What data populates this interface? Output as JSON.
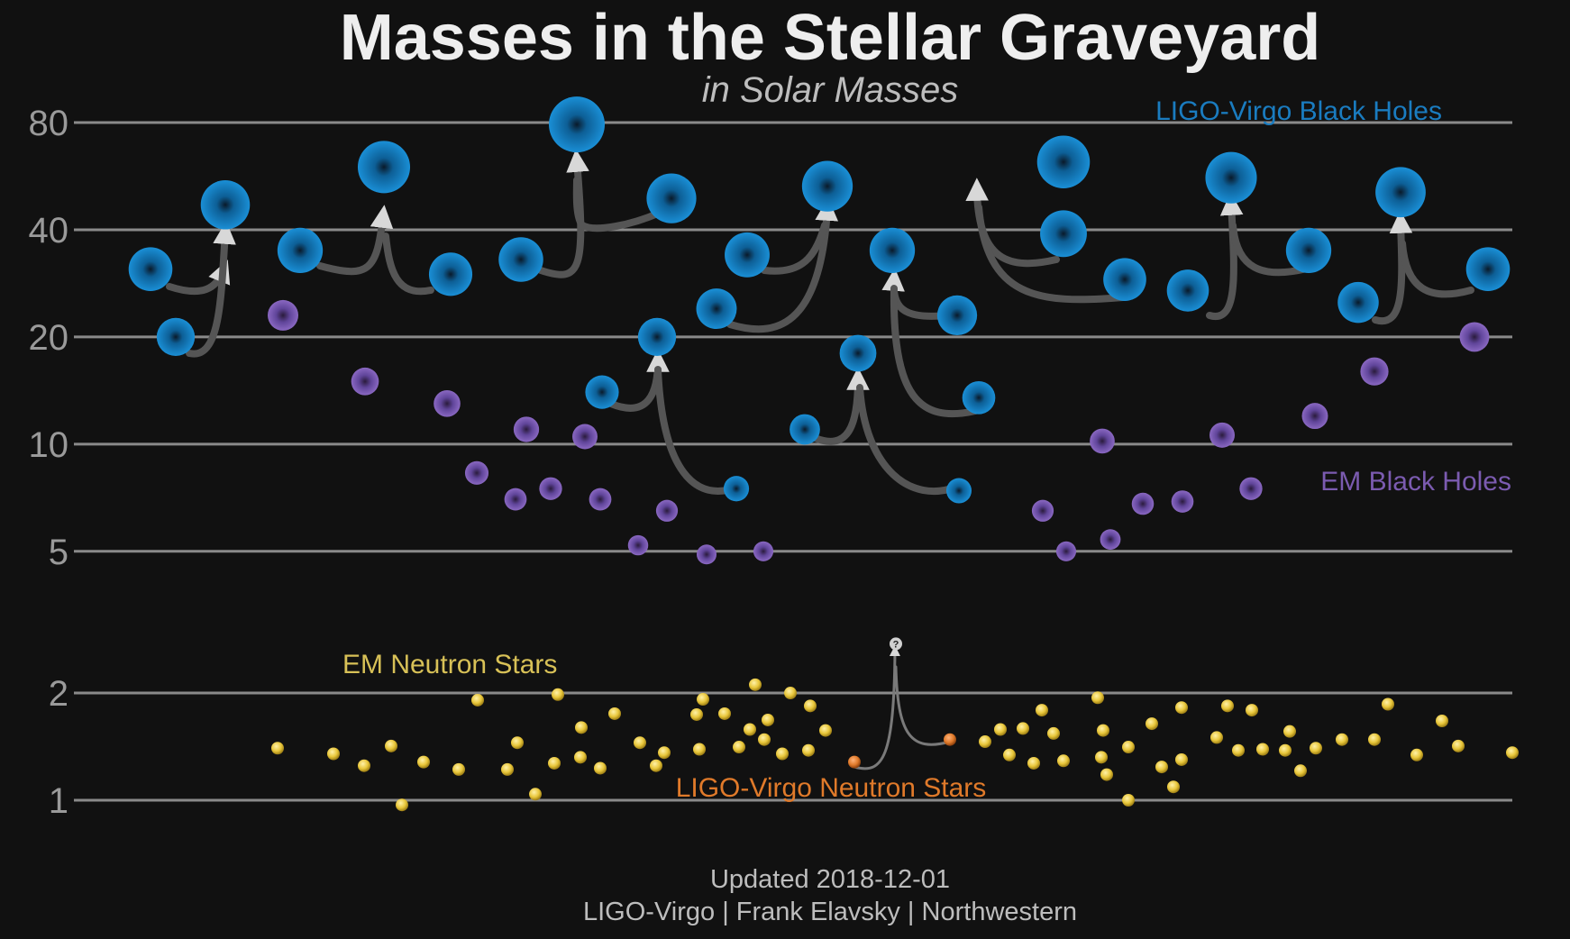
{
  "chart_data": {
    "type": "scatter",
    "title": "Masses in the Stellar Graveyard",
    "subtitle": "in Solar Masses",
    "y_scale": "log",
    "ylim": [
      0.85,
      95
    ],
    "y_ticks": [
      1,
      2,
      5,
      10,
      20,
      40,
      80
    ],
    "grid": true,
    "footer_line1": "Updated 2018-12-01",
    "footer_line2": "LIGO-Virgo | Frank Elavsky | Northwestern",
    "series": [
      {
        "name": "LIGO-Virgo Black Holes",
        "color": "#1a86c8",
        "points": [
          {
            "x": 1,
            "y": 31
          },
          {
            "x": 2,
            "y": 20
          },
          {
            "x": 3,
            "y": 47
          },
          {
            "x": 4,
            "y": 35
          },
          {
            "x": 5,
            "y": 60
          },
          {
            "x": 6,
            "y": 30
          },
          {
            "x": 7,
            "y": 33
          },
          {
            "x": 8,
            "y": 79
          },
          {
            "x": 9,
            "y": 49
          },
          {
            "x": 10,
            "y": 14
          },
          {
            "x": 11,
            "y": 20
          },
          {
            "x": 12,
            "y": 7.5
          },
          {
            "x": 13,
            "y": 24
          },
          {
            "x": 14,
            "y": 34
          },
          {
            "x": 15,
            "y": 53
          },
          {
            "x": 16,
            "y": 11
          },
          {
            "x": 17,
            "y": 18
          },
          {
            "x": 18,
            "y": 35
          },
          {
            "x": 19,
            "y": 7.4
          },
          {
            "x": 20,
            "y": 23
          },
          {
            "x": 21,
            "y": 13.5
          },
          {
            "x": 22,
            "y": 62
          },
          {
            "x": 23,
            "y": 39
          },
          {
            "x": 24,
            "y": 29
          },
          {
            "x": 25,
            "y": 27
          },
          {
            "x": 26,
            "y": 56
          },
          {
            "x": 27,
            "y": 35
          },
          {
            "x": 28,
            "y": 25
          },
          {
            "x": 29,
            "y": 51
          },
          {
            "x": 30,
            "y": 31
          }
        ]
      },
      {
        "name": "EM Black Holes",
        "color": "#7b5bb0",
        "points": [
          {
            "x": 1,
            "y": 23
          },
          {
            "x": 2,
            "y": 15
          },
          {
            "x": 3,
            "y": 13
          },
          {
            "x": 4,
            "y": 8.3
          },
          {
            "x": 5,
            "y": 7
          },
          {
            "x": 6,
            "y": 11
          },
          {
            "x": 7,
            "y": 7.5
          },
          {
            "x": 8,
            "y": 10.5
          },
          {
            "x": 9,
            "y": 7
          },
          {
            "x": 10,
            "y": 5.2
          },
          {
            "x": 11,
            "y": 6.5
          },
          {
            "x": 12,
            "y": 4.9
          },
          {
            "x": 13,
            "y": 5
          },
          {
            "x": 14,
            "y": 6.5
          },
          {
            "x": 15,
            "y": 10.2
          },
          {
            "x": 16,
            "y": 5
          },
          {
            "x": 17,
            "y": 5.4
          },
          {
            "x": 18,
            "y": 6.8
          },
          {
            "x": 19,
            "y": 6.9
          },
          {
            "x": 20,
            "y": 10.6
          },
          {
            "x": 21,
            "y": 7.5
          },
          {
            "x": 22,
            "y": 12
          },
          {
            "x": 23,
            "y": 16
          },
          {
            "x": 24,
            "y": 20
          }
        ]
      },
      {
        "name": "EM Neutron Stars",
        "color": "#e8c63a",
        "points": [
          {
            "x": 1,
            "y": 1.4
          },
          {
            "x": 2,
            "y": 1.35
          },
          {
            "x": 3,
            "y": 1.25
          },
          {
            "x": 4,
            "y": 1.42
          },
          {
            "x": 5,
            "y": 0.97
          },
          {
            "x": 6,
            "y": 1.28
          },
          {
            "x": 7,
            "y": 1.22
          },
          {
            "x": 8,
            "y": 1.91
          },
          {
            "x": 9,
            "y": 1.22
          },
          {
            "x": 10,
            "y": 1.45
          },
          {
            "x": 11,
            "y": 1.04
          },
          {
            "x": 12,
            "y": 1.27
          },
          {
            "x": 13,
            "y": 1.98
          },
          {
            "x": 14,
            "y": 1.32
          },
          {
            "x": 15,
            "y": 1.6
          },
          {
            "x": 16,
            "y": 1.23
          },
          {
            "x": 17,
            "y": 1.75
          },
          {
            "x": 18,
            "y": 1.45
          },
          {
            "x": 19,
            "y": 1.25
          },
          {
            "x": 20,
            "y": 1.36
          },
          {
            "x": 21,
            "y": 1.74
          },
          {
            "x": 22,
            "y": 1.39
          },
          {
            "x": 23,
            "y": 1.92
          },
          {
            "x": 24,
            "y": 1.75
          },
          {
            "x": 25,
            "y": 1.41
          },
          {
            "x": 26,
            "y": 1.58
          },
          {
            "x": 27,
            "y": 2.11
          },
          {
            "x": 28,
            "y": 1.48
          },
          {
            "x": 29,
            "y": 1.68
          },
          {
            "x": 30,
            "y": 1.35
          },
          {
            "x": 31,
            "y": 2.0
          },
          {
            "x": 32,
            "y": 1.38
          },
          {
            "x": 33,
            "y": 1.84
          },
          {
            "x": 34,
            "y": 1.57
          },
          {
            "x": 35,
            "y": 1.46
          },
          {
            "x": 36,
            "y": 1.58
          },
          {
            "x": 37,
            "y": 1.34
          },
          {
            "x": 38,
            "y": 1.59
          },
          {
            "x": 39,
            "y": 1.27
          },
          {
            "x": 40,
            "y": 1.79
          },
          {
            "x": 41,
            "y": 1.54
          },
          {
            "x": 42,
            "y": 1.29
          },
          {
            "x": 43,
            "y": 1.94
          },
          {
            "x": 44,
            "y": 1.32
          },
          {
            "x": 45,
            "y": 1.57
          },
          {
            "x": 46,
            "y": 1.18
          },
          {
            "x": 47,
            "y": 1.0
          },
          {
            "x": 48,
            "y": 1.41
          },
          {
            "x": 49,
            "y": 1.64
          },
          {
            "x": 50,
            "y": 1.24
          },
          {
            "x": 51,
            "y": 1.09
          },
          {
            "x": 52,
            "y": 1.82
          },
          {
            "x": 53,
            "y": 1.3
          },
          {
            "x": 54,
            "y": 1.5
          },
          {
            "x": 55,
            "y": 1.84
          },
          {
            "x": 56,
            "y": 1.38
          },
          {
            "x": 57,
            "y": 1.79
          },
          {
            "x": 58,
            "y": 1.39
          },
          {
            "x": 59,
            "y": 1.38
          },
          {
            "x": 60,
            "y": 1.56
          },
          {
            "x": 61,
            "y": 1.21
          },
          {
            "x": 62,
            "y": 1.4
          },
          {
            "x": 63,
            "y": 1.48
          },
          {
            "x": 64,
            "y": 1.48
          },
          {
            "x": 65,
            "y": 1.86
          },
          {
            "x": 66,
            "y": 1.34
          },
          {
            "x": 67,
            "y": 1.67
          },
          {
            "x": 68,
            "y": 1.42
          },
          {
            "x": 69,
            "y": 1.36
          }
        ]
      },
      {
        "name": "LIGO-Virgo Neutron Stars",
        "color": "#e07a2a",
        "points": [
          {
            "x": 1,
            "y": 1.28
          },
          {
            "x": 2,
            "y": 1.48
          }
        ],
        "remnant_label": "?",
        "remnant_y": 2.75
      }
    ]
  }
}
